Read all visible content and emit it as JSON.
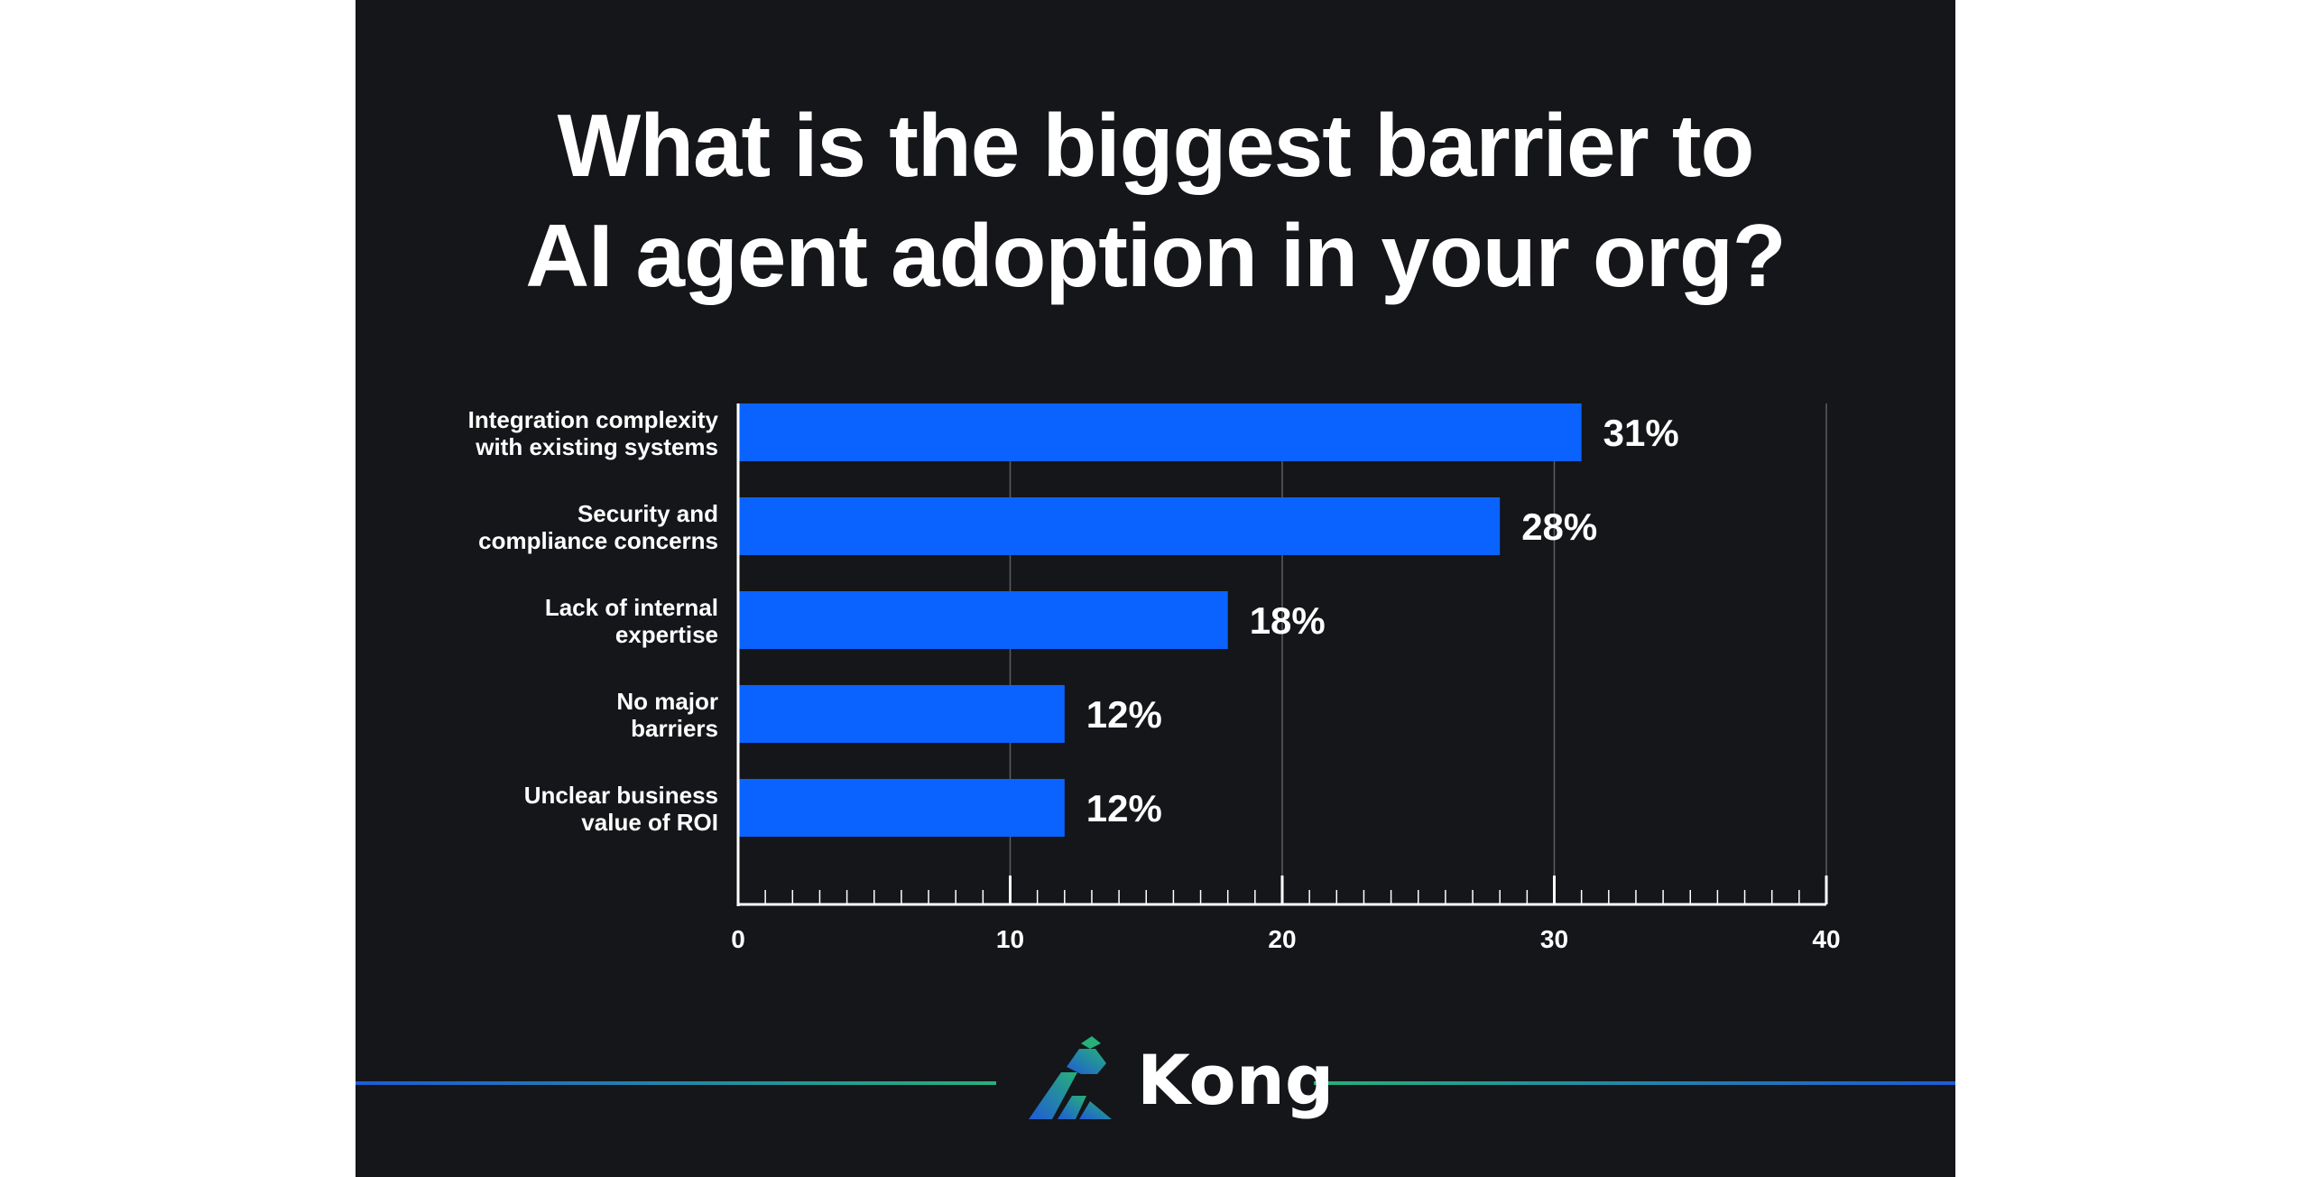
{
  "title_lines": [
    "What is the biggest barrier to",
    "AI agent adoption in your org?"
  ],
  "brand": {
    "name": "Kong",
    "logo_icon": "kong-gorilla-icon"
  },
  "colors": {
    "background": "#141619",
    "bar": "#0a63ff",
    "text": "#ffffff",
    "grid": "#5a5d63",
    "accent_blue": "#1f5bd6",
    "accent_green": "#27b07a"
  },
  "chart_data": {
    "type": "bar",
    "orientation": "horizontal",
    "title": "What is the biggest barrier to AI agent adoption in your org?",
    "categories": [
      [
        "Integration complexity",
        "with existing systems"
      ],
      [
        "Security and",
        "compliance concerns"
      ],
      [
        "Lack of internal",
        "expertise"
      ],
      [
        "No major",
        "barriers"
      ],
      [
        "Unclear business",
        "value of ROI"
      ]
    ],
    "values": [
      31,
      28,
      18,
      12,
      12
    ],
    "value_labels": [
      "31%",
      "28%",
      "18%",
      "12%",
      "12%"
    ],
    "xlim": [
      0,
      40
    ],
    "xticks": [
      0,
      10,
      20,
      30,
      40
    ],
    "tick_labels": [
      "0",
      "10",
      "20",
      "30",
      "40"
    ],
    "minor_tick_step": 1,
    "grid": true,
    "xlabel": "",
    "ylabel": ""
  }
}
